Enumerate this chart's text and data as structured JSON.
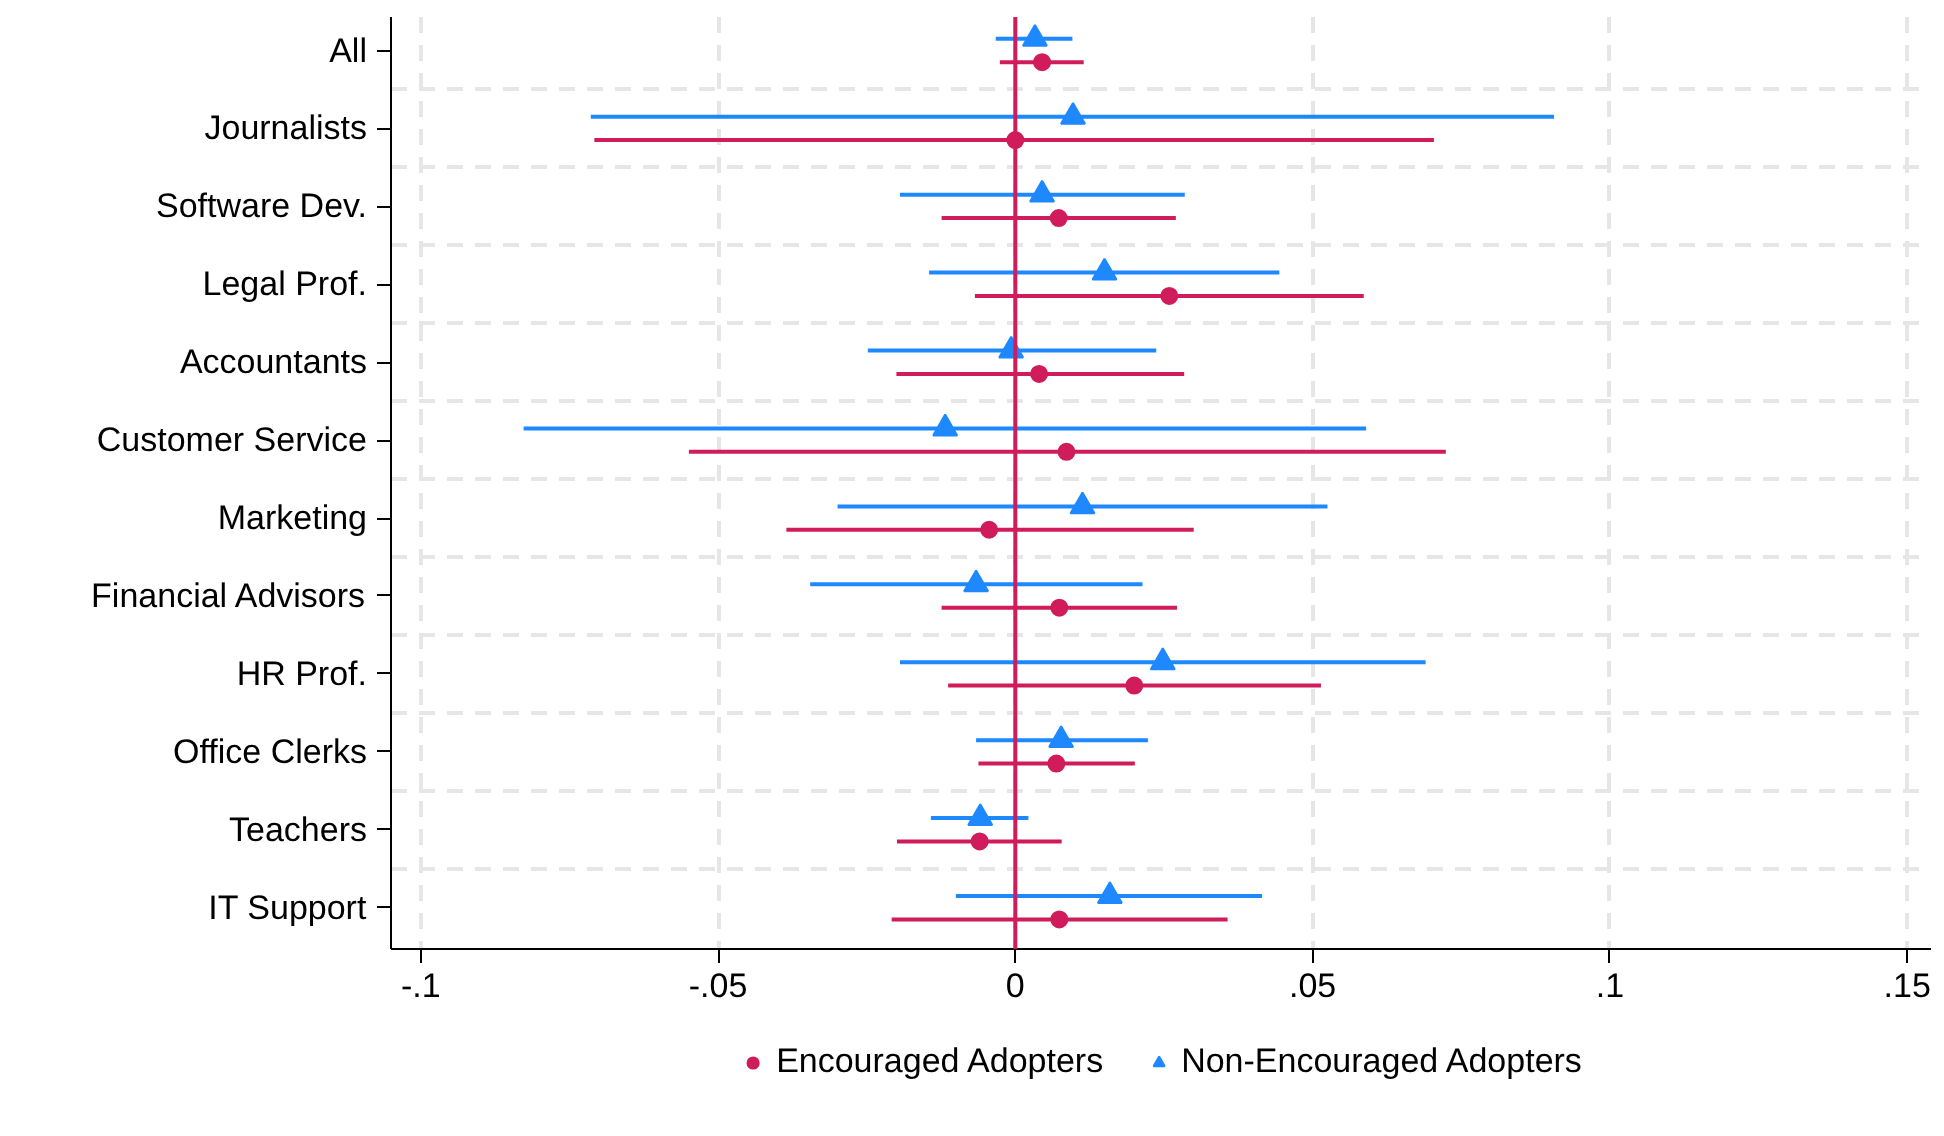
{
  "chart_data": {
    "type": "scatter",
    "orientation": "horizontal",
    "categories": [
      "All",
      "Journalists",
      "Software Dev.",
      "Legal Prof.",
      "Accountants",
      "Customer Service",
      "Marketing",
      "Financial Advisors",
      "HR Prof.",
      "Office Clerks",
      "Teachers",
      "IT Support"
    ],
    "series": [
      {
        "name": "Encouraged Adopters",
        "color": "#d01c5b",
        "marker": "circle",
        "values": [
          0.0045,
          0.0,
          0.0073,
          0.0259,
          0.004,
          0.0086,
          -0.0044,
          0.0074,
          0.02,
          0.0069,
          -0.006,
          0.0074
        ],
        "errors": [
          [
            -0.0026,
            0.0115
          ],
          [
            -0.0708,
            0.0704
          ],
          [
            -0.0124,
            0.027
          ],
          [
            -0.0068,
            0.0586
          ],
          [
            -0.02,
            0.0284
          ],
          [
            -0.0549,
            0.0724
          ],
          [
            -0.0385,
            0.03
          ],
          [
            -0.0124,
            0.0272
          ],
          [
            -0.0113,
            0.0514
          ],
          [
            -0.0062,
            0.0201
          ],
          [
            -0.0199,
            0.0078
          ],
          [
            -0.0208,
            0.0357
          ]
        ]
      },
      {
        "name": "Non-Encouraged Adopters",
        "color": "#1e88ff",
        "marker": "triangle",
        "values": [
          0.0033,
          0.0097,
          0.0045,
          0.015,
          -0.0007,
          -0.0118,
          0.0113,
          -0.0066,
          0.0248,
          0.0077,
          -0.0059,
          0.0159
        ],
        "errors": [
          [
            -0.0033,
            0.0096
          ],
          [
            -0.0714,
            0.0906
          ],
          [
            -0.0194,
            0.0285
          ],
          [
            -0.0145,
            0.0444
          ],
          [
            -0.0248,
            0.0237
          ],
          [
            -0.0827,
            0.059
          ],
          [
            -0.0299,
            0.0525
          ],
          [
            -0.0345,
            0.0214
          ],
          [
            -0.0194,
            0.069
          ],
          [
            -0.0066,
            0.0223
          ],
          [
            -0.0142,
            0.0022
          ],
          [
            -0.01,
            0.0415
          ]
        ]
      }
    ],
    "xlim": [
      -0.105,
      0.154
    ],
    "xticks": [
      {
        "value": -0.1,
        "label": "-.1"
      },
      {
        "value": -0.05,
        "label": "-.05"
      },
      0,
      {
        "value": 0.05,
        "label": ".05"
      },
      {
        "value": 0.1,
        "label": ".1"
      },
      {
        "value": 0.15,
        "label": ".15"
      }
    ],
    "ref_lines": [
      {
        "axis": "x",
        "value": 0,
        "color": "#d01c5b"
      }
    ],
    "grid": true,
    "legend": "bottom"
  }
}
